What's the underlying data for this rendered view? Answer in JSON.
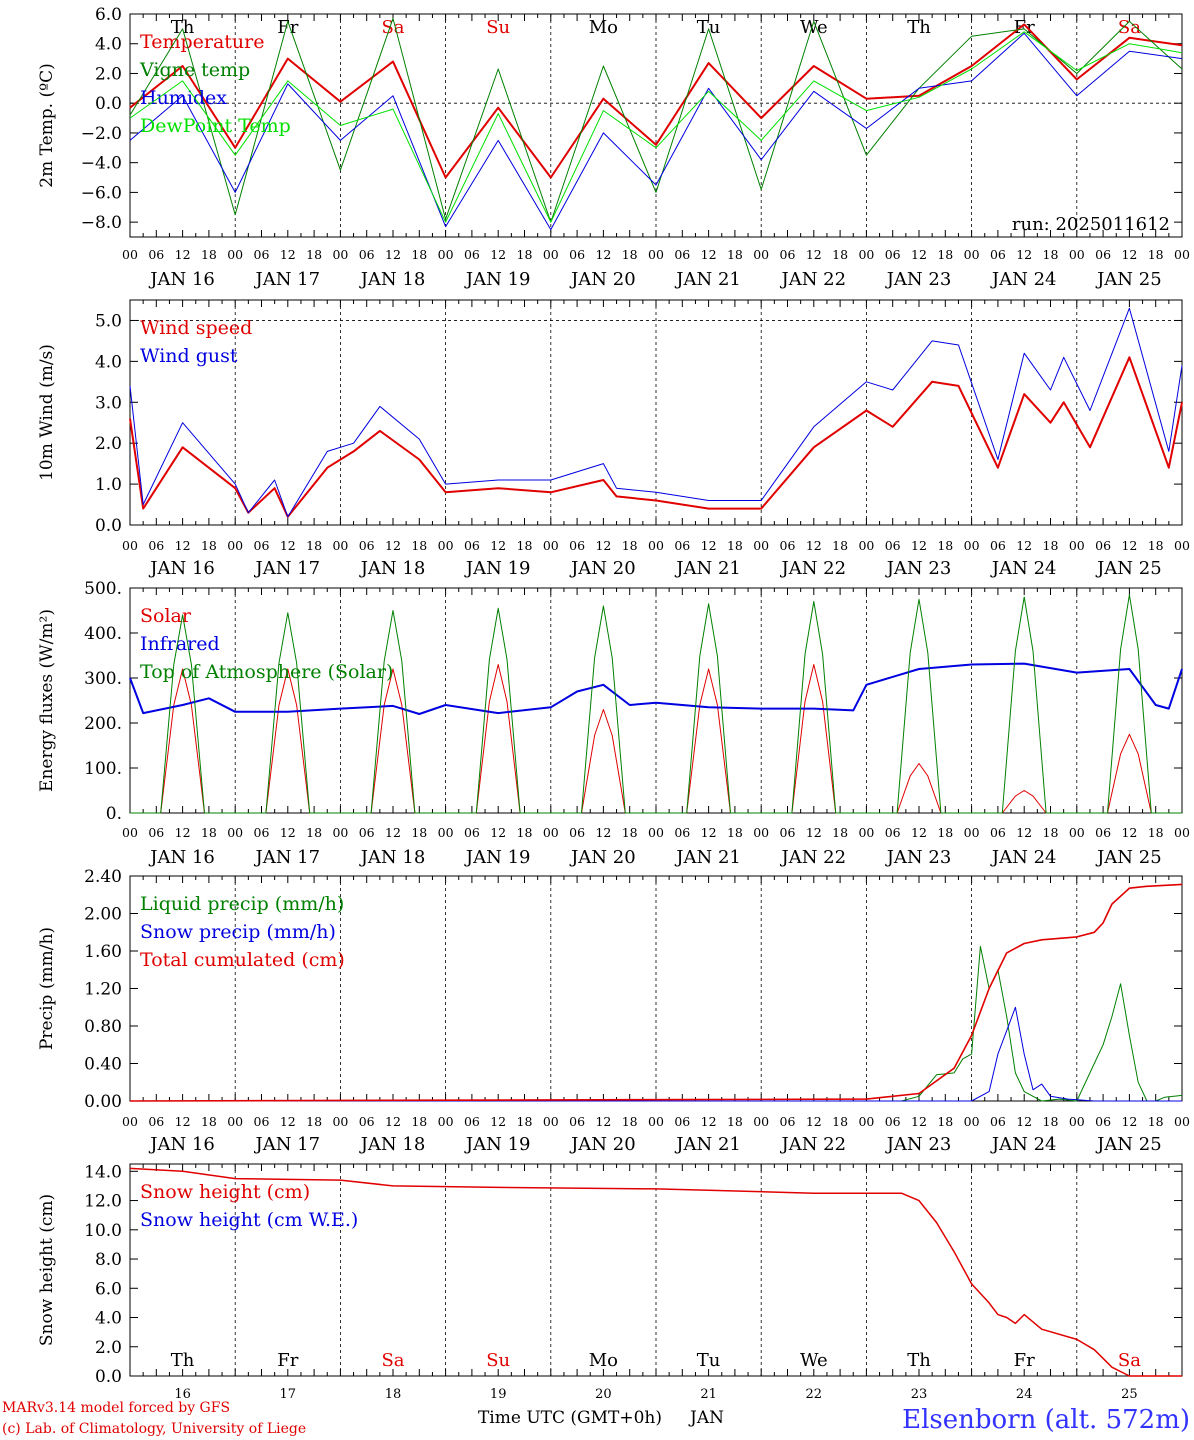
{
  "station": "Elsenborn (alt. 572m)",
  "credits": [
    "MARv3.14 model forced by GFS",
    "(c) Lab. of Climatology, University of Liege"
  ],
  "time_axis": {
    "hours": [
      "00",
      "06",
      "12",
      "18"
    ],
    "dates": [
      "JAN 16",
      "JAN 17",
      "JAN 18",
      "JAN 19",
      "JAN 20",
      "JAN 21",
      "JAN 22",
      "JAN 23",
      "JAN 24",
      "JAN 25"
    ],
    "weekdays": [
      "Th",
      "Fr",
      "Sa",
      "Su",
      "Mo",
      "Tu",
      "We",
      "Th",
      "Fr",
      "Sa"
    ],
    "weekend_color": "#e00000",
    "weekday_color": "#000000",
    "day_numbers": [
      "16",
      "17",
      "18",
      "19",
      "20",
      "21",
      "22",
      "23",
      "24",
      "25"
    ],
    "xlabel": "Time UTC (GMT+0h)",
    "month": "JAN"
  },
  "chart_data": [
    {
      "type": "line",
      "ylabel": "2m Temp. (ºC)",
      "ylim": [
        -9,
        6
      ],
      "ticks": [
        -8,
        -6,
        -4,
        -2,
        0,
        2,
        4,
        6
      ],
      "tick_labels": [
        "−8.0",
        "−6.0",
        "−4.0",
        "−2.0",
        "0.0",
        "2.0",
        "4.0",
        "6.0"
      ],
      "reference_line": 0,
      "annotation": "run: 2025011612",
      "legend": "top-left",
      "show_weekdays": true,
      "series": [
        {
          "name": "Temperature",
          "color": "#e00000",
          "width": 2,
          "x": [
            0,
            12,
            24,
            36,
            48,
            60,
            72,
            84,
            96,
            108,
            120,
            132,
            144,
            156,
            168,
            180,
            192,
            204,
            216,
            228,
            240
          ],
          "values": [
            -0.3,
            2.5,
            -3.0,
            3.0,
            0.1,
            2.8,
            -5.0,
            -0.3,
            -5.0,
            0.3,
            -2.8,
            2.7,
            -1.0,
            2.5,
            0.3,
            0.5,
            2.5,
            5.3,
            1.6,
            4.4,
            3.9
          ]
        },
        {
          "name": "Vigne temp",
          "color": "#008000",
          "width": 1,
          "x": [
            0,
            12,
            24,
            36,
            48,
            60,
            72,
            84,
            96,
            108,
            120,
            132,
            144,
            156,
            168,
            180,
            192,
            204,
            216,
            228,
            240
          ],
          "values": [
            -0.8,
            5.0,
            -7.5,
            5.5,
            -4.5,
            5.7,
            -7.8,
            2.3,
            -8.0,
            2.5,
            -6.0,
            5.0,
            -5.8,
            5.5,
            -3.5,
            1.0,
            4.5,
            5.0,
            2.0,
            5.5,
            2.3
          ]
        },
        {
          "name": "Humidex",
          "color": "#0000e0",
          "width": 1,
          "x": [
            0,
            12,
            24,
            36,
            48,
            60,
            72,
            84,
            96,
            108,
            120,
            132,
            144,
            156,
            168,
            180,
            192,
            204,
            216,
            228,
            240
          ],
          "values": [
            -2.5,
            0.5,
            -6.0,
            1.3,
            -2.5,
            0.5,
            -8.3,
            -2.5,
            -8.5,
            -2.0,
            -5.5,
            1.0,
            -3.8,
            0.8,
            -1.7,
            1.0,
            1.5,
            4.7,
            0.5,
            3.5,
            3.0
          ]
        },
        {
          "name": "DewPoint Temp",
          "color": "#00e000",
          "width": 1,
          "x": [
            0,
            12,
            24,
            36,
            48,
            60,
            72,
            84,
            96,
            108,
            120,
            132,
            144,
            156,
            168,
            180,
            192,
            204,
            216,
            228,
            240
          ],
          "values": [
            -1.0,
            1.5,
            -3.5,
            1.5,
            -1.5,
            -0.4,
            -8.0,
            -0.7,
            -8.0,
            -0.5,
            -3.0,
            0.8,
            -2.5,
            1.5,
            -0.5,
            0.4,
            2.3,
            4.8,
            2.2,
            4.0,
            3.4
          ]
        }
      ]
    },
    {
      "type": "line",
      "ylabel": "10m Wind (m/s)",
      "ylim": [
        0,
        5.5
      ],
      "ticks": [
        0,
        1,
        2,
        3,
        4,
        5
      ],
      "tick_labels": [
        "0.0",
        "1.0",
        "2.0",
        "3.0",
        "4.0",
        "5.0"
      ],
      "reference_line": 5,
      "legend": "top-left",
      "series": [
        {
          "name": "Wind speed",
          "color": "#e00000",
          "width": 2,
          "x": [
            0,
            3,
            12,
            24,
            27,
            33,
            36,
            45,
            51,
            57,
            66,
            72,
            84,
            96,
            108,
            111,
            120,
            132,
            144,
            156,
            168,
            174,
            183,
            189,
            198,
            204,
            210,
            213,
            219,
            228,
            237,
            240
          ],
          "values": [
            2.6,
            0.4,
            1.9,
            0.9,
            0.3,
            0.9,
            0.2,
            1.4,
            1.8,
            2.3,
            1.6,
            0.8,
            0.9,
            0.8,
            1.1,
            0.7,
            0.6,
            0.4,
            0.4,
            1.9,
            2.8,
            2.4,
            3.5,
            3.4,
            1.4,
            3.2,
            2.5,
            3.0,
            1.9,
            4.1,
            1.4,
            3.0
          ]
        },
        {
          "name": "Wind gust",
          "color": "#0000e0",
          "width": 1,
          "x": [
            0,
            3,
            12,
            24,
            27,
            33,
            36,
            45,
            51,
            57,
            66,
            72,
            84,
            96,
            108,
            111,
            120,
            132,
            144,
            156,
            168,
            174,
            183,
            189,
            198,
            204,
            210,
            213,
            219,
            228,
            237,
            240
          ],
          "values": [
            3.4,
            0.5,
            2.5,
            1.0,
            0.3,
            1.1,
            0.2,
            1.8,
            2.0,
            2.9,
            2.1,
            1.0,
            1.1,
            1.1,
            1.5,
            0.9,
            0.8,
            0.6,
            0.6,
            2.4,
            3.5,
            3.3,
            4.5,
            4.4,
            1.6,
            4.2,
            3.3,
            4.1,
            2.8,
            5.3,
            1.8,
            3.9
          ]
        }
      ]
    },
    {
      "type": "line",
      "ylabel": "Energy fluxes (W/m²)",
      "ylim": [
        0,
        500
      ],
      "ticks": [
        0,
        100,
        200,
        300,
        400,
        500
      ],
      "tick_labels": [
        "0.",
        "100.",
        "200.",
        "300.",
        "400.",
        "500."
      ],
      "legend": "top-left",
      "series": [
        {
          "name": "Solar",
          "color": "#e00000",
          "width": 1,
          "pattern": "daily_peak",
          "peaks": [
            320,
            320,
            320,
            330,
            230,
            320,
            330,
            110,
            50,
            175
          ]
        },
        {
          "name": "Infrared",
          "color": "#0000e0",
          "width": 2,
          "x": [
            0,
            3,
            12,
            18,
            24,
            36,
            48,
            60,
            66,
            72,
            84,
            96,
            102,
            108,
            114,
            120,
            132,
            144,
            156,
            165,
            168,
            180,
            192,
            204,
            216,
            228,
            234,
            237,
            240
          ],
          "values": [
            300,
            222,
            240,
            255,
            225,
            225,
            232,
            238,
            220,
            240,
            222,
            235,
            270,
            285,
            240,
            245,
            235,
            232,
            232,
            228,
            285,
            320,
            330,
            332,
            312,
            320,
            240,
            232,
            320
          ]
        },
        {
          "name": "Top of Atmosphere (Solar)",
          "color": "#008000",
          "width": 1,
          "pattern": "daily_peak",
          "peaks": [
            440,
            445,
            450,
            455,
            460,
            465,
            470,
            475,
            480,
            485
          ]
        }
      ]
    },
    {
      "type": "line",
      "ylabel": "Precip (mm/h)",
      "ylim": [
        0,
        2.4
      ],
      "ticks": [
        0,
        0.4,
        0.8,
        1.2,
        1.6,
        2.0,
        2.4
      ],
      "tick_labels": [
        "0.00",
        "0.40",
        "0.80",
        "1.20",
        "1.60",
        "2.00",
        "2.40"
      ],
      "legend": "top-left",
      "series": [
        {
          "name": "Liquid precip (mm/h)",
          "color": "#008000",
          "width": 1,
          "x": [
            0,
            176,
            180,
            184,
            188,
            190,
            192,
            194,
            196,
            198,
            200,
            202,
            204,
            206,
            208,
            212,
            216,
            220,
            222,
            224,
            226,
            228,
            230,
            232,
            234,
            236,
            240
          ],
          "values": [
            0,
            0,
            0.05,
            0.28,
            0.3,
            0.45,
            0.5,
            1.65,
            1.2,
            1.4,
            0.9,
            0.3,
            0.1,
            0.05,
            0,
            0.02,
            0,
            0.4,
            0.6,
            0.9,
            1.25,
            0.7,
            0.2,
            0,
            0,
            0.04,
            0.06
          ]
        },
        {
          "name": "Snow precip (mm/h)",
          "color": "#0000e0",
          "width": 1,
          "x": [
            0,
            192,
            196,
            198,
            200,
            202,
            204,
            206,
            208,
            210,
            214,
            220,
            240
          ],
          "values": [
            0,
            0,
            0.1,
            0.5,
            0.75,
            1.0,
            0.5,
            0.12,
            0.18,
            0.05,
            0.02,
            0,
            0
          ]
        },
        {
          "name": "Total cumulated (cm)",
          "color": "#e00000",
          "width": 1.6,
          "x": [
            0,
            168,
            180,
            188,
            192,
            196,
            200,
            204,
            208,
            216,
            220,
            222,
            224,
            228,
            232,
            240
          ],
          "values": [
            0,
            0.02,
            0.08,
            0.35,
            0.7,
            1.2,
            1.58,
            1.68,
            1.72,
            1.75,
            1.8,
            1.9,
            2.1,
            2.27,
            2.29,
            2.31
          ]
        }
      ]
    },
    {
      "type": "line",
      "ylabel": "Snow height (cm)",
      "ylim": [
        0,
        14.5
      ],
      "ticks": [
        0,
        2,
        4,
        6,
        8,
        10,
        12,
        14
      ],
      "tick_labels": [
        "0.0",
        "2.0",
        "4.0",
        "6.0",
        "8.0",
        "10.0",
        "12.0",
        "14.0"
      ],
      "legend": "top-left",
      "show_weekdays_bottom": true,
      "series": [
        {
          "name": "Snow height (cm)",
          "color": "#e00000",
          "width": 1.5,
          "x": [
            0,
            12,
            24,
            48,
            60,
            84,
            120,
            132,
            156,
            176,
            180,
            184,
            188,
            192,
            196,
            198,
            200,
            202,
            204,
            208,
            216,
            220,
            224,
            228,
            240
          ],
          "values": [
            14.2,
            14.0,
            13.5,
            13.4,
            13.0,
            12.9,
            12.8,
            12.7,
            12.5,
            12.5,
            12.0,
            10.5,
            8.5,
            6.3,
            5.0,
            4.2,
            4.0,
            3.6,
            4.2,
            3.2,
            2.5,
            1.8,
            0.6,
            0,
            0
          ]
        },
        {
          "name": "Snow height (cm W.E.)",
          "color": "#0000e0",
          "width": 1,
          "x": [],
          "values": []
        }
      ]
    }
  ]
}
